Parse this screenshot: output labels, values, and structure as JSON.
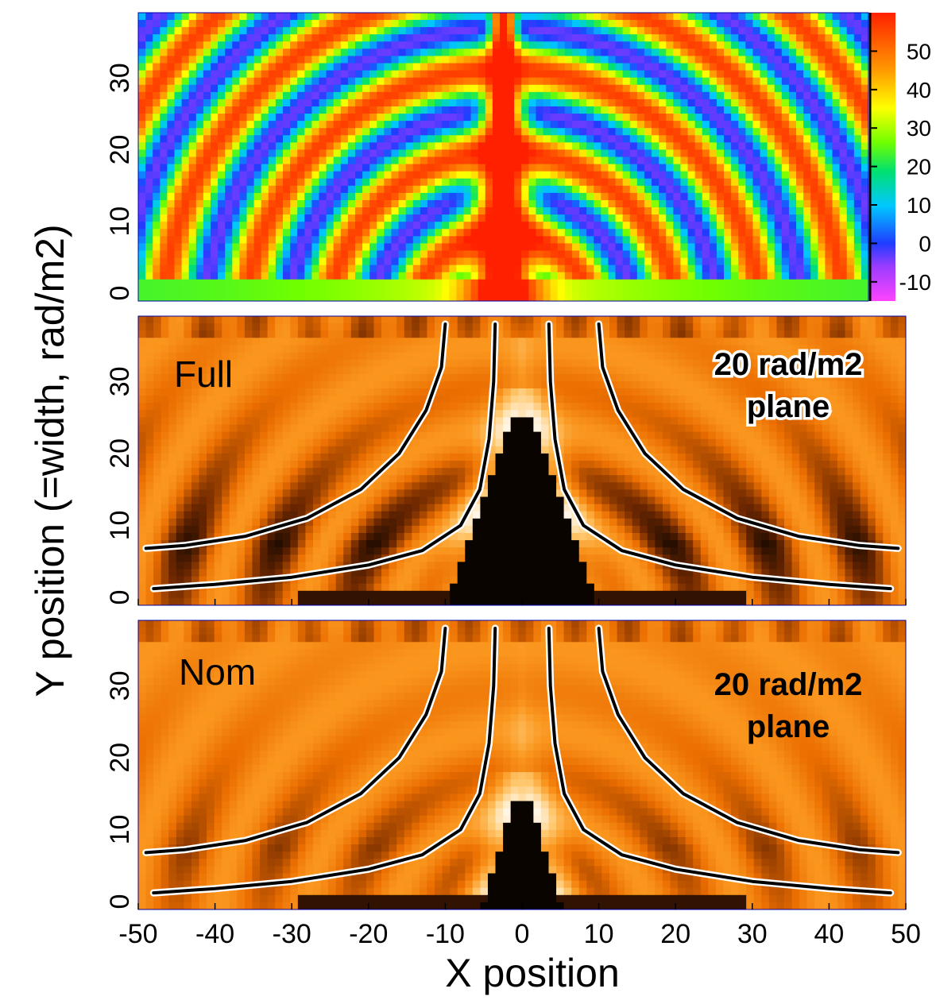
{
  "chart_data": {
    "type": "heatmap",
    "xlabel": "X position",
    "ylabel": "Y position (=width, rad/m2)",
    "xlim": [
      -50,
      50
    ],
    "ylim": [
      0,
      39
    ],
    "xticks": [
      "-50",
      "-40",
      "-30",
      "-20",
      "-10",
      "0",
      "10",
      "20",
      "30",
      "40",
      "50"
    ],
    "yticks": [
      "0",
      "10",
      "20",
      "30"
    ],
    "panels": [
      {
        "name": "rm-map",
        "colormap": "rainbow",
        "colorbar": {
          "ticks": [
            "50",
            "40",
            "30",
            "20",
            "10",
            "0",
            "-10"
          ],
          "tick_values": [
            50,
            40,
            30,
            20,
            10,
            0,
            -10
          ],
          "range": [
            -15,
            60
          ]
        }
      },
      {
        "name": "full",
        "label": "Full",
        "plane_label": [
          "20 rad/m2",
          "plane"
        ],
        "colormap": "heat"
      },
      {
        "name": "nom",
        "label": "Nom",
        "plane_label": [
          "20 rad/m2",
          "plane"
        ],
        "colormap": "heat"
      }
    ],
    "contour_levels": [
      {
        "name": "inner",
        "points": [
          [
            -3.5,
            38
          ],
          [
            -3.7,
            30
          ],
          [
            -4.3,
            22
          ],
          [
            -5.5,
            15
          ],
          [
            -8,
            10
          ],
          [
            -13,
            6.5
          ],
          [
            -20,
            4.5
          ],
          [
            -30,
            2.8
          ],
          [
            -40,
            1.8
          ],
          [
            -48,
            1.2
          ]
        ]
      },
      {
        "name": "outer",
        "points": [
          [
            -10,
            38
          ],
          [
            -10.5,
            32
          ],
          [
            -12.5,
            26
          ],
          [
            -16,
            20
          ],
          [
            -21,
            15
          ],
          [
            -28,
            11
          ],
          [
            -36,
            8.5
          ],
          [
            -44,
            7.2
          ],
          [
            -49,
            6.8
          ]
        ]
      }
    ]
  }
}
